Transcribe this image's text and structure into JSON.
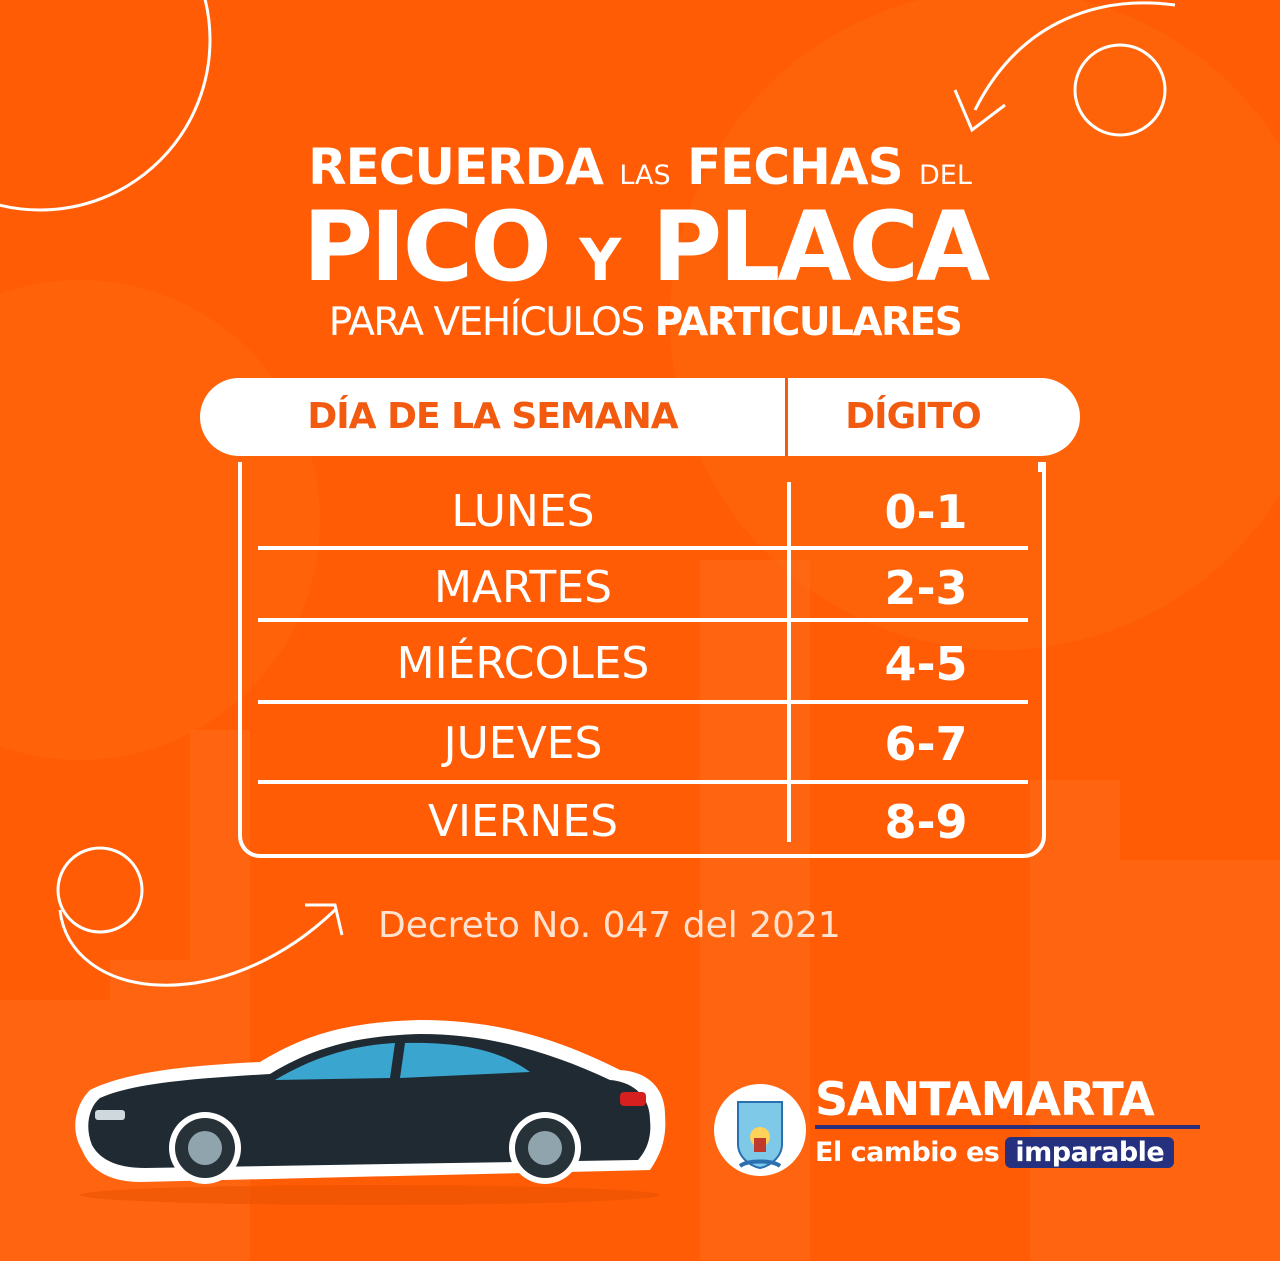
{
  "title": {
    "line1": {
      "w1": "RECUERDA",
      "w2": "LAS",
      "w3": "FECHAS",
      "w4": "DEL"
    },
    "line2": {
      "w1": "PICO",
      "w2": "Y",
      "w3": "PLACA"
    },
    "line3": {
      "w1": "PARA VEHÍCULOS",
      "w2": "PARTICULARES"
    }
  },
  "table": {
    "headers": {
      "day": "DÍA DE LA SEMANA",
      "digit": "DÍGITO"
    },
    "rows": [
      {
        "day": "LUNES",
        "digit": "0-1"
      },
      {
        "day": "MARTES",
        "digit": "2-3"
      },
      {
        "day": "MIÉRCOLES",
        "digit": "4-5"
      },
      {
        "day": "JUEVES",
        "digit": "6-7"
      },
      {
        "day": "VIERNES",
        "digit": "8-9"
      }
    ]
  },
  "decree": "Decreto No. 047 del 2021",
  "brand": {
    "name": "SANTAMARTA",
    "slogan_prefix": "El cambio es",
    "slogan_highlight": "imparable"
  },
  "colors": {
    "background": "#ff5c05",
    "accent_text": "#f25a0f",
    "navy": "#25307e"
  },
  "icons": [
    "car-illustration",
    "coat-of-arms-logo",
    "curved-arrow-icon"
  ]
}
